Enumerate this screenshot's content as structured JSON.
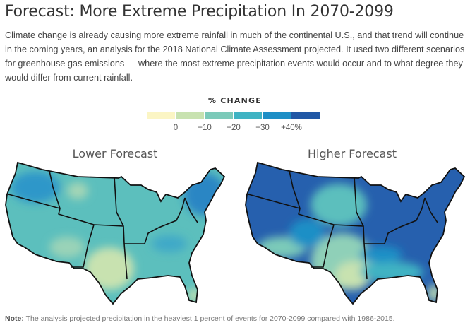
{
  "header": {
    "title": "Forecast: More Extreme Precipitation In 2070-2099",
    "description": "Climate change is already causing more extreme rainfall in much of the continental U.S., and that trend will continue in the coming years, an analysis for the 2018 National Climate Assessment projected. It used two different scenarios for greenhouse gas emissions — where the most extreme precipitation events would occur and to what degree they would differ from current rainfall."
  },
  "legend": {
    "title": "% CHANGE",
    "colors": [
      "#fbf5c4",
      "#c8e2b0",
      "#7ccab9",
      "#3fb3c3",
      "#1e8fc6",
      "#2158a6"
    ],
    "ticks": [
      "0",
      "+10",
      "+20",
      "+30",
      "+40%"
    ]
  },
  "maps": [
    {
      "title": "Lower Forecast"
    },
    {
      "title": "Higher Forecast"
    }
  ],
  "note": {
    "label": "Note:",
    "text": " The analysis projected precipitation in the heaviest 1 percent of events for 2070-2099 compared with 1986-2015."
  }
}
